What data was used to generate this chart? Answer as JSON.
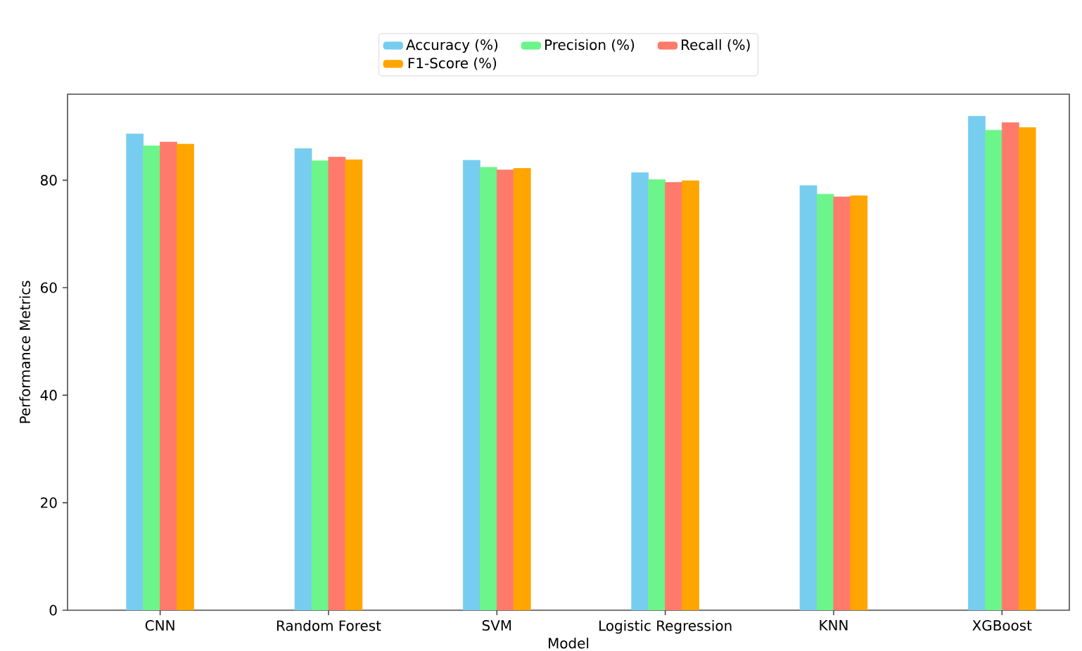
{
  "chart_data": {
    "type": "bar",
    "xlabel": "Model",
    "ylabel": "Performance Metrics",
    "categories": [
      "CNN",
      "Random Forest",
      "SVM",
      "Logistic Regression",
      "KNN",
      "XGBoost"
    ],
    "series": [
      {
        "name": "Accuracy (%)",
        "color": "#77cdef",
        "values": [
          88.6,
          85.9,
          83.7,
          81.4,
          79.0,
          91.9
        ]
      },
      {
        "name": "Precision (%)",
        "color": "#6cf58a",
        "values": [
          86.4,
          83.6,
          82.4,
          80.1,
          77.4,
          89.3
        ]
      },
      {
        "name": "Recall (%)",
        "color": "#fe7b6b",
        "values": [
          87.1,
          84.3,
          81.9,
          79.6,
          76.9,
          90.7
        ]
      },
      {
        "name": "F1-Score (%)",
        "color": "#ffa500",
        "values": [
          86.7,
          83.8,
          82.2,
          79.9,
          77.1,
          89.8
        ]
      }
    ],
    "ylim": [
      0,
      96
    ],
    "yticks": [
      0,
      20,
      40,
      60,
      80
    ],
    "legend": "top"
  }
}
